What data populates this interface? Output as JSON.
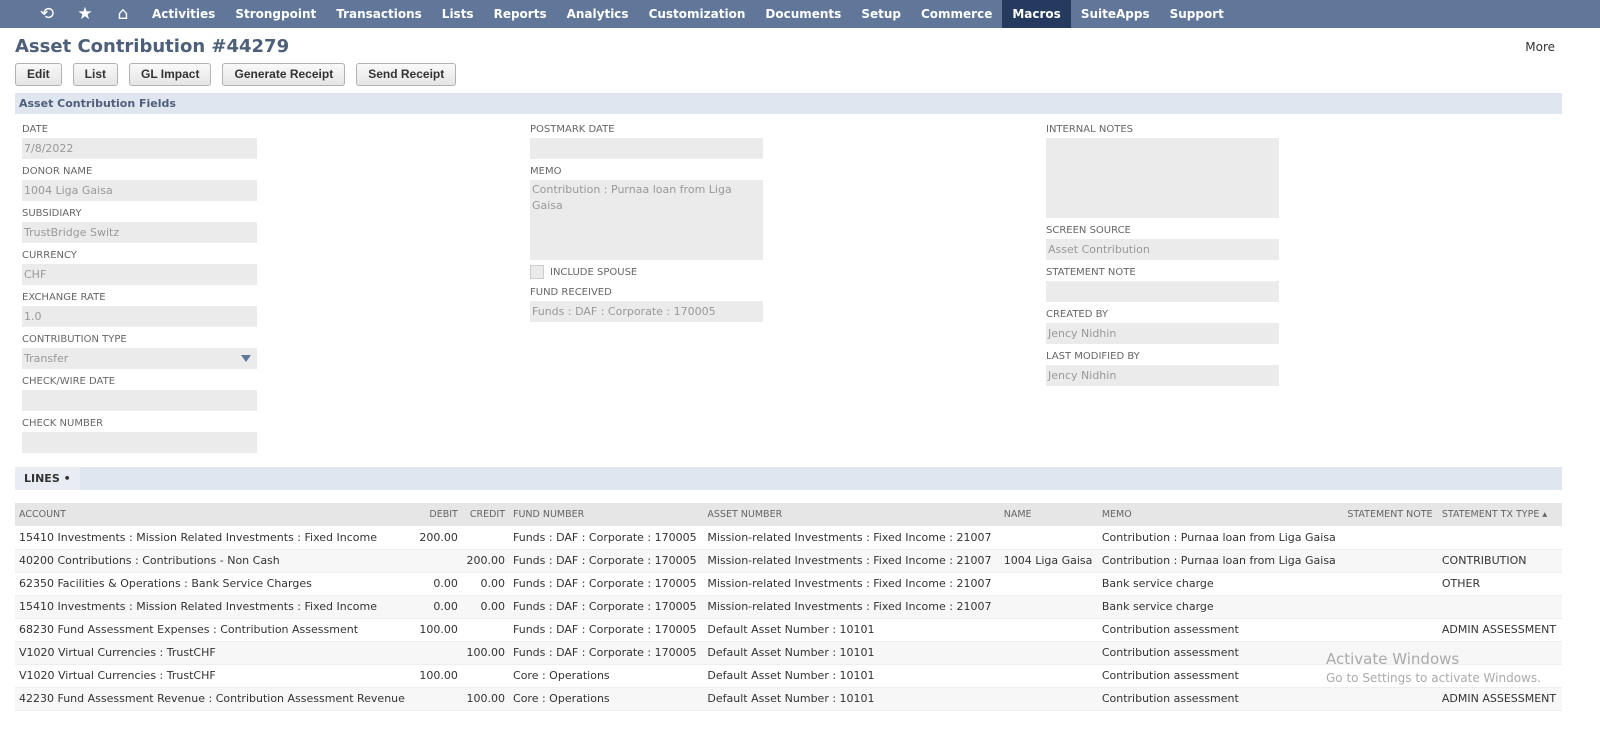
{
  "nav": {
    "icons": [
      "recent-icon",
      "star-icon",
      "home-icon"
    ],
    "items": [
      "Activities",
      "Strongpoint",
      "Transactions",
      "Lists",
      "Reports",
      "Analytics",
      "Customization",
      "Documents",
      "Setup",
      "Commerce",
      "Macros",
      "SuiteApps",
      "Support"
    ],
    "active": "Macros"
  },
  "title": "Asset Contribution #44279",
  "more": "More",
  "buttons": {
    "edit": "Edit",
    "list": "List",
    "gl": "GL Impact",
    "generate": "Generate Receipt",
    "send": "Send Receipt"
  },
  "section": "Asset Contribution Fields",
  "fields": {
    "date": {
      "label": "DATE",
      "value": "7/8/2022"
    },
    "donor": {
      "label": "DONOR NAME",
      "value": "1004 Liga Gaisa"
    },
    "subsidiary": {
      "label": "SUBSIDIARY",
      "value": "TrustBridge Switz"
    },
    "currency": {
      "label": "CURRENCY",
      "value": "CHF"
    },
    "rate": {
      "label": "EXCHANGE RATE",
      "value": "1.0"
    },
    "ctype": {
      "label": "CONTRIBUTION TYPE",
      "value": "Transfer"
    },
    "checkdate": {
      "label": "CHECK/WIRE DATE",
      "value": ""
    },
    "checknum": {
      "label": "CHECK NUMBER",
      "value": ""
    },
    "postmark": {
      "label": "POSTMARK DATE",
      "value": ""
    },
    "memo": {
      "label": "MEMO",
      "value": "Contribution : Purnaa loan from Liga  Gaisa"
    },
    "spouse": {
      "label": "INCLUDE SPOUSE"
    },
    "fund": {
      "label": "FUND RECEIVED",
      "value": "Funds : DAF : Corporate : 170005"
    },
    "notes": {
      "label": "INTERNAL NOTES",
      "value": ""
    },
    "source": {
      "label": "SCREEN SOURCE",
      "value": "Asset Contribution"
    },
    "stmt": {
      "label": "STATEMENT NOTE",
      "value": ""
    },
    "created": {
      "label": "CREATED BY",
      "value": "Jency Nidhin"
    },
    "modified": {
      "label": "LAST MODIFIED BY",
      "value": "Jency Nidhin"
    }
  },
  "lines": {
    "tab": "LINES •",
    "headers": [
      "ACCOUNT",
      "DEBIT",
      "CREDIT",
      "FUND NUMBER",
      "ASSET NUMBER",
      "NAME",
      "MEMO",
      "STATEMENT NOTE",
      "STATEMENT TX TYPE ▴"
    ],
    "rows": [
      [
        "15410 Investments : Mission Related Investments : Fixed Income",
        "200.00",
        "",
        "Funds : DAF : Corporate : 170005",
        "Mission-related Investments : Fixed Income : 21007",
        "",
        "Contribution : Purnaa loan from Liga Gaisa",
        "",
        ""
      ],
      [
        "40200 Contributions : Contributions - Non Cash",
        "",
        "200.00",
        "Funds : DAF : Corporate : 170005",
        "Mission-related Investments : Fixed Income : 21007",
        "1004 Liga Gaisa",
        "Contribution : Purnaa loan from Liga Gaisa",
        "",
        "CONTRIBUTION"
      ],
      [
        "62350 Facilities & Operations : Bank Service Charges",
        "0.00",
        "0.00",
        "Funds : DAF : Corporate : 170005",
        "Mission-related Investments : Fixed Income : 21007",
        "",
        "Bank service charge",
        "",
        "OTHER"
      ],
      [
        "15410 Investments : Mission Related Investments : Fixed Income",
        "0.00",
        "0.00",
        "Funds : DAF : Corporate : 170005",
        "Mission-related Investments : Fixed Income : 21007",
        "",
        "Bank service charge",
        "",
        ""
      ],
      [
        "68230 Fund Assessment Expenses : Contribution Assessment",
        "100.00",
        "",
        "Funds : DAF : Corporate : 170005",
        "Default Asset Number : 10101",
        "",
        "Contribution assessment",
        "",
        "ADMIN ASSESSMENT"
      ],
      [
        "V1020 Virtual Currencies : TrustCHF",
        "",
        "100.00",
        "Funds : DAF : Corporate : 170005",
        "Default Asset Number : 10101",
        "",
        "Contribution assessment",
        "",
        ""
      ],
      [
        "V1020 Virtual Currencies : TrustCHF",
        "100.00",
        "",
        "Core : Operations",
        "Default Asset Number : 10101",
        "",
        "Contribution assessment",
        "",
        ""
      ],
      [
        "42230 Fund Assessment Revenue : Contribution Assessment Revenue",
        "",
        "100.00",
        "Core : Operations",
        "Default Asset Number : 10101",
        "",
        "Contribution assessment",
        "",
        "ADMIN ASSESSMENT"
      ]
    ]
  },
  "watermark": {
    "line1": "Activate Windows",
    "line2": "Go to Settings to activate Windows."
  }
}
